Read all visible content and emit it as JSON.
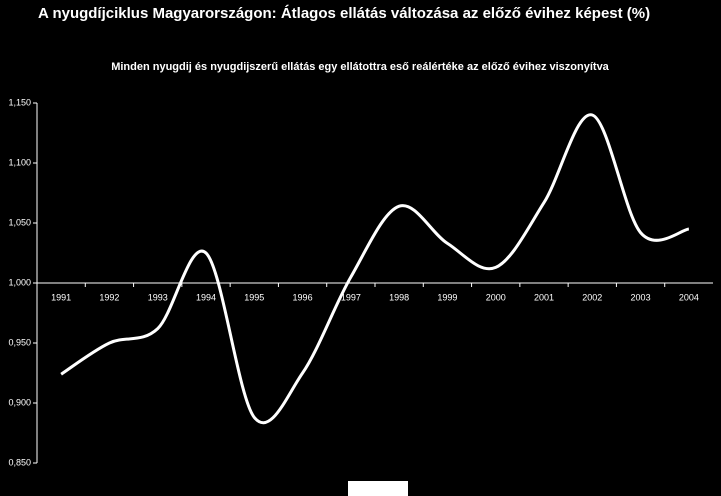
{
  "chart_data": {
    "type": "line",
    "title": "A nyugdíjciklus Magyarországon: Átlagos ellátás változása az előző évihez képest (%)",
    "subtitle": "Minden nyugdij és nyugdijszerű ellátás egy ellátottra eső reálértéke az előző évihez viszonyítva",
    "categories": [
      "1991",
      "1992",
      "1993",
      "1994",
      "1995",
      "1996",
      "1997",
      "1998",
      "1999",
      "2000",
      "2001",
      "2002",
      "2003",
      "2004"
    ],
    "values": [
      0.924,
      0.95,
      0.962,
      1.025,
      0.888,
      0.925,
      1.005,
      1.064,
      1.033,
      1.013,
      1.067,
      1.14,
      1.042,
      1.045
    ],
    "color": "#ffffff",
    "ylim": [
      0.85,
      1.15
    ],
    "yticks": [
      {
        "value": 0.85,
        "label": "0,850"
      },
      {
        "value": 0.9,
        "label": "0,900"
      },
      {
        "value": 0.95,
        "label": "0,950"
      },
      {
        "value": 1.0,
        "label": "1,000"
      },
      {
        "value": 1.05,
        "label": "1,050"
      },
      {
        "value": 1.1,
        "label": "1,100"
      },
      {
        "value": 1.15,
        "label": "1,150"
      }
    ],
    "x_axis_at": 1.0,
    "grid": false
  }
}
